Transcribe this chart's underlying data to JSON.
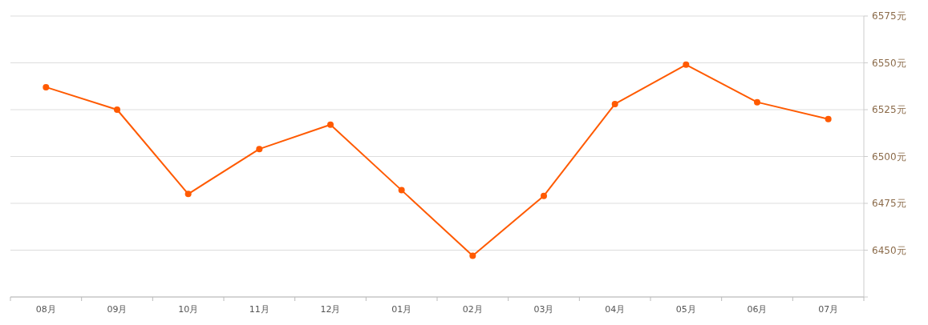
{
  "chart_data": {
    "type": "line",
    "categories": [
      "08月",
      "09月",
      "10月",
      "11月",
      "12月",
      "01月",
      "02月",
      "03月",
      "04月",
      "05月",
      "06月",
      "07月"
    ],
    "series": [
      {
        "color": "#ff5a00",
        "values": [
          6537,
          6525,
          6480,
          6504,
          6517,
          6482,
          6447,
          6479,
          6528,
          6549,
          6529,
          6520
        ]
      }
    ],
    "ylim": [
      6425,
      6575
    ],
    "yticks": [
      {
        "value": 6425,
        "label": null
      },
      {
        "value": 6450,
        "label": "6450元"
      },
      {
        "value": 6475,
        "label": "6475元"
      },
      {
        "value": 6500,
        "label": "6500元"
      },
      {
        "value": 6525,
        "label": "6525元"
      },
      {
        "value": 6550,
        "label": "6550元"
      },
      {
        "value": 6575,
        "label": "6575元"
      }
    ],
    "grid": "y",
    "marker": "circle",
    "line_style": "solid"
  }
}
